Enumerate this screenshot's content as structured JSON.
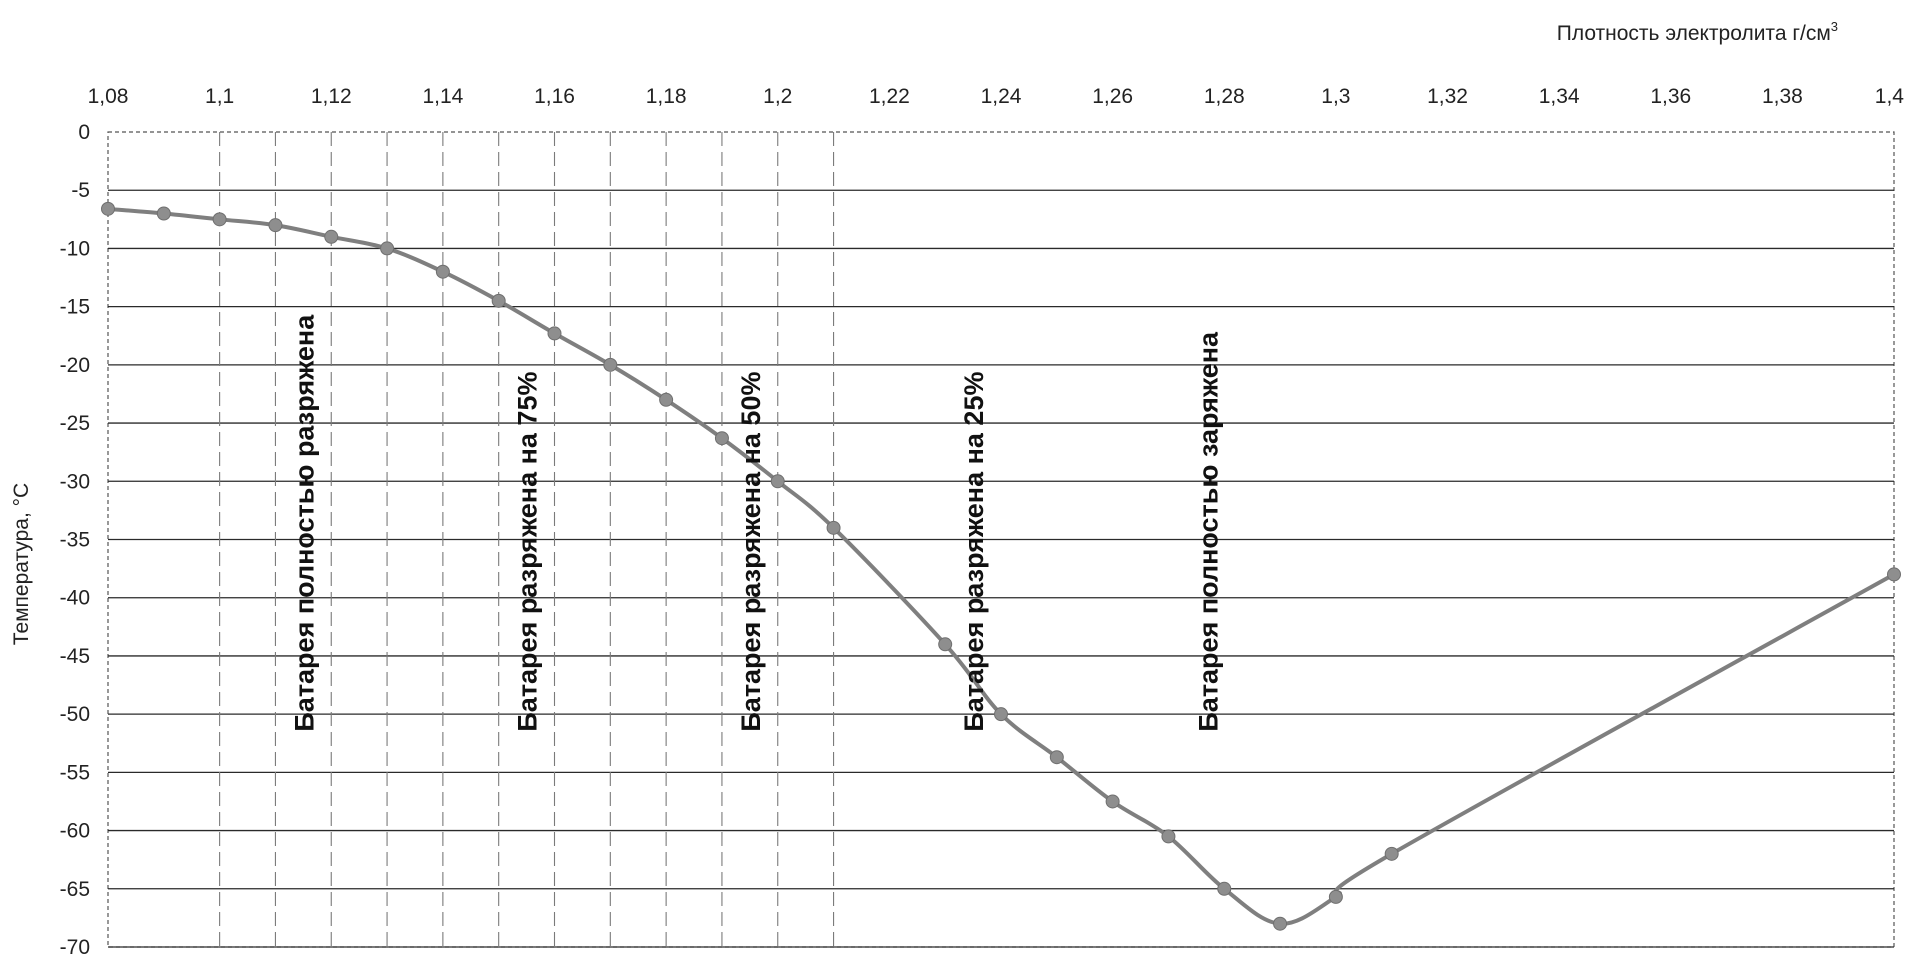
{
  "chart_data": {
    "type": "line",
    "xlabel": "Плотность электролита г/см",
    "xlabel_superscript": "3",
    "ylabel": "Температура, °С",
    "x_axis_position": "top",
    "xlim": [
      1.08,
      1.4
    ],
    "ylim": [
      -70,
      0
    ],
    "grid": true,
    "x_ticks": [
      {
        "value": 1.08,
        "label": "1,08"
      },
      {
        "value": 1.1,
        "label": "1,1"
      },
      {
        "value": 1.12,
        "label": "1,12"
      },
      {
        "value": 1.14,
        "label": "1,14"
      },
      {
        "value": 1.16,
        "label": "1,16"
      },
      {
        "value": 1.18,
        "label": "1,18"
      },
      {
        "value": 1.2,
        "label": "1,2"
      },
      {
        "value": 1.22,
        "label": "1,22"
      },
      {
        "value": 1.24,
        "label": "1,24"
      },
      {
        "value": 1.26,
        "label": "1,26"
      },
      {
        "value": 1.28,
        "label": "1,28"
      },
      {
        "value": 1.3,
        "label": "1,3"
      },
      {
        "value": 1.32,
        "label": "1,32"
      },
      {
        "value": 1.34,
        "label": "1,34"
      },
      {
        "value": 1.36,
        "label": "1,36"
      },
      {
        "value": 1.38,
        "label": "1,38"
      },
      {
        "value": 1.4,
        "label": "1,4"
      }
    ],
    "y_ticks": [
      {
        "value": 0,
        "label": "0"
      },
      {
        "value": -5,
        "label": "-5"
      },
      {
        "value": -10,
        "label": "-10"
      },
      {
        "value": -15,
        "label": "-15"
      },
      {
        "value": -20,
        "label": "-20"
      },
      {
        "value": -25,
        "label": "-25"
      },
      {
        "value": -30,
        "label": "-30"
      },
      {
        "value": -35,
        "label": "-35"
      },
      {
        "value": -40,
        "label": "-40"
      },
      {
        "value": -45,
        "label": "-45"
      },
      {
        "value": -50,
        "label": "-50"
      },
      {
        "value": -55,
        "label": "-55"
      },
      {
        "value": -60,
        "label": "-60"
      },
      {
        "value": -65,
        "label": "-65"
      },
      {
        "value": -70,
        "label": "-70"
      }
    ],
    "dashed_verticals": [
      1.1,
      1.11,
      1.12,
      1.13,
      1.14,
      1.15,
      1.16,
      1.17,
      1.18,
      1.19,
      1.2,
      1.21
    ],
    "series": [
      {
        "color": "#7f7f7f",
        "points": [
          [
            1.08,
            -6.6
          ],
          [
            1.09,
            -7.0
          ],
          [
            1.1,
            -7.5
          ],
          [
            1.11,
            -8.0
          ],
          [
            1.12,
            -9.0
          ],
          [
            1.13,
            -10.0
          ],
          [
            1.14,
            -12.0
          ],
          [
            1.15,
            -14.5
          ],
          [
            1.16,
            -17.3
          ],
          [
            1.17,
            -20.0
          ],
          [
            1.18,
            -23.0
          ],
          [
            1.19,
            -26.3
          ],
          [
            1.2,
            -30.0
          ],
          [
            1.21,
            -34.0
          ],
          [
            1.23,
            -44.0
          ],
          [
            1.24,
            -50.0
          ],
          [
            1.25,
            -53.7
          ],
          [
            1.26,
            -57.5
          ],
          [
            1.27,
            -60.5
          ],
          [
            1.28,
            -65.0
          ],
          [
            1.29,
            -68.0
          ],
          [
            1.3,
            -65.7
          ],
          [
            1.31,
            -62.0
          ],
          [
            1.4,
            -38.0
          ]
        ]
      }
    ],
    "annotations": [
      {
        "text": "Батарея полностью разряжена",
        "x": 1.115,
        "y_bottom": -51.5
      },
      {
        "text": "Батарея разряжена на 75%",
        "x": 1.155,
        "y_bottom": -51.5
      },
      {
        "text": "Батарея разряжена на 50%",
        "x": 1.195,
        "y_bottom": -51.5
      },
      {
        "text": "Батарея разряжена на 25%",
        "x": 1.235,
        "y_bottom": -51.5
      },
      {
        "text": "Батарея полностью заряжена",
        "x": 1.277,
        "y_bottom": -51.5
      }
    ]
  }
}
